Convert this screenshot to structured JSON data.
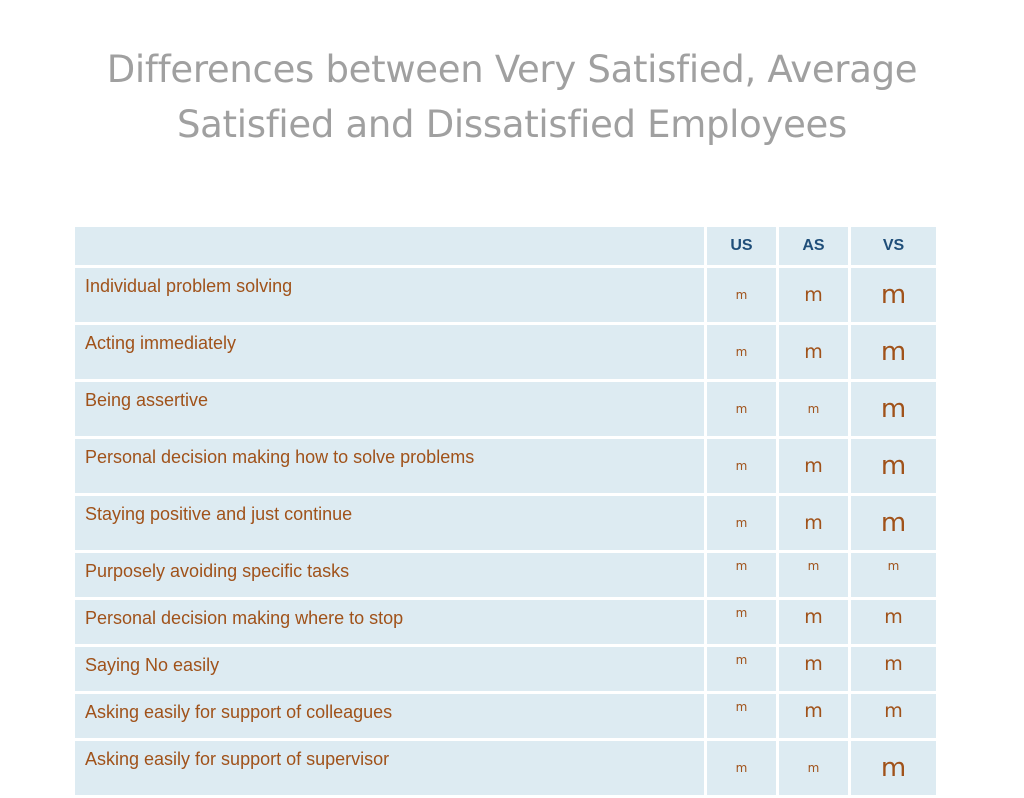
{
  "title": {
    "line1": "Differences between Very Satisfied, Average",
    "line2": "Satisfied and Dissatisfied Employees"
  },
  "table": {
    "columns": [
      "",
      "US",
      "AS",
      "VS"
    ],
    "rows": [
      {
        "label": "Individual problem solving",
        "marks": [
          {
            "text": "m",
            "size": "s"
          },
          {
            "text": "m",
            "size": "m"
          },
          {
            "text": "m",
            "size": "l"
          }
        ]
      },
      {
        "label": "Acting immediately",
        "marks": [
          {
            "text": "m",
            "size": "s"
          },
          {
            "text": "m",
            "size": "m"
          },
          {
            "text": "m",
            "size": "l"
          }
        ]
      },
      {
        "label": "Being assertive",
        "marks": [
          {
            "text": "m",
            "size": "s"
          },
          {
            "text": "m",
            "size": "s"
          },
          {
            "text": "m",
            "size": "l"
          }
        ]
      },
      {
        "label": "Personal decision making how to solve problems",
        "marks": [
          {
            "text": "m",
            "size": "s"
          },
          {
            "text": "m",
            "size": "m"
          },
          {
            "text": "m",
            "size": "l"
          }
        ]
      },
      {
        "label": "Staying positive and just continue",
        "marks": [
          {
            "text": "m",
            "size": "s"
          },
          {
            "text": "m",
            "size": "m"
          },
          {
            "text": "m",
            "size": "l"
          }
        ]
      },
      {
        "label": "Purposely avoiding specific tasks",
        "marks": [
          {
            "text": "m",
            "size": "s"
          },
          {
            "text": "m",
            "size": "s"
          },
          {
            "text": "m",
            "size": "s"
          }
        ]
      },
      {
        "label": "Personal decision making where to stop",
        "marks": [
          {
            "text": "m",
            "size": "s"
          },
          {
            "text": "m",
            "size": "m"
          },
          {
            "text": "m",
            "size": "m"
          }
        ]
      },
      {
        "label": "Saying No easily",
        "marks": [
          {
            "text": "m",
            "size": "s"
          },
          {
            "text": "m",
            "size": "m"
          },
          {
            "text": "m",
            "size": "m"
          }
        ]
      },
      {
        "label": "Asking easily for support of colleagues",
        "marks": [
          {
            "text": "m",
            "size": "s"
          },
          {
            "text": "m",
            "size": "m"
          },
          {
            "text": "m",
            "size": "m"
          }
        ]
      },
      {
        "label": "Asking easily for support of supervisor",
        "marks": [
          {
            "text": "m",
            "size": "s"
          },
          {
            "text": "m",
            "size": "s"
          },
          {
            "text": "m",
            "size": "l"
          }
        ]
      }
    ]
  }
}
